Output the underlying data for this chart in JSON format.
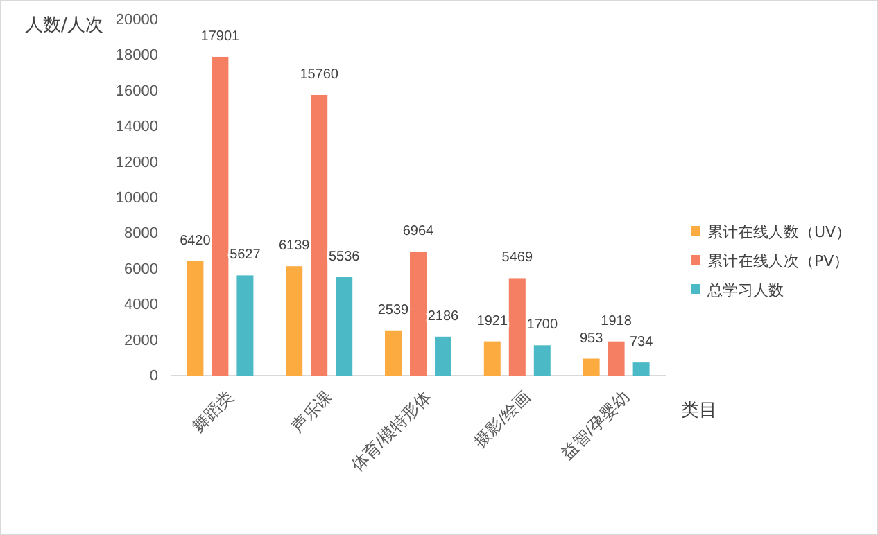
{
  "chart_data": {
    "type": "bar",
    "categories": [
      "舞蹈类",
      "声乐课",
      "体育/模特形体",
      "摄影/绘画",
      "益智/孕婴幼"
    ],
    "series": [
      {
        "name": "累计在线人数（UV）",
        "color": "#fbab40",
        "values": [
          6420,
          6139,
          2539,
          1921,
          953
        ]
      },
      {
        "name": "累计在线人次（PV）",
        "color": "#f47f62",
        "values": [
          17901,
          15760,
          6964,
          5469,
          1918
        ]
      },
      {
        "name": "总学习人数",
        "color": "#4bbac6",
        "values": [
          5627,
          5536,
          2186,
          1700,
          734
        ]
      }
    ],
    "ylabel": "人数/人次",
    "xlabel": "类目",
    "ylim": [
      0,
      20000
    ],
    "yticks": [
      0,
      2000,
      4000,
      6000,
      8000,
      10000,
      12000,
      14000,
      16000,
      18000,
      20000
    ],
    "data_labels": true,
    "legend": "right",
    "grid": false
  }
}
